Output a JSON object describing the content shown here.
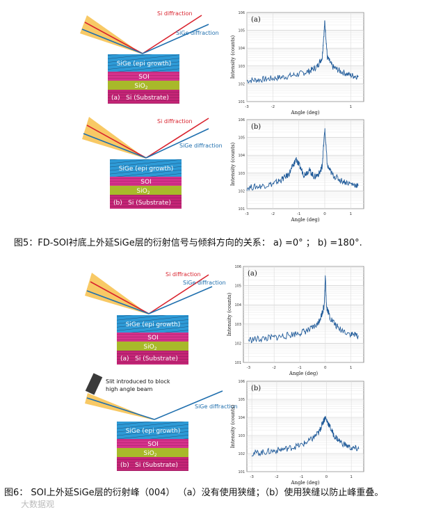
{
  "fig5": {
    "caption": "图5：FD-SOI衬底上外延SiGe层的衍射信号与倾斜方向的关系： a)    =0° ；  b)    =180°.",
    "a": {
      "si_diffraction": "Si diffraction",
      "sige_diffraction": "SiGe diffraction",
      "layer_sige": "SiGe (epi growth)",
      "layer_soi": "SOI",
      "layer_sio2_main": "SiO",
      "layer_sio2_sub": "2",
      "layer_si": "Si (Substrate)",
      "panel_tag": "(a)"
    },
    "b": {
      "si_diffraction": "Si diffraction",
      "sige_diffraction": "SiGe diffraction",
      "layer_sige": "SiGe (epi growth)",
      "layer_soi": "SOI",
      "layer_sio2_main": "SiO",
      "layer_sio2_sub": "2",
      "layer_si": "Si (Substrate)",
      "panel_tag": "(b)"
    }
  },
  "fig6": {
    "caption": "图6： SOI上外延SiGe层的衍射峰（004） （a）没有使用狭缝；（b）使用狭缝以防止峰重叠。",
    "a": {
      "si_diffraction": "Si diffraction",
      "sige_diffraction": "SiGe diffraction",
      "layer_sige": "SiGe (epi growth)",
      "layer_soi": "SOI",
      "layer_sio2_main": "SiO",
      "layer_sio2_sub": "2",
      "layer_si": "Si (Substrate)",
      "panel_tag": "(a)"
    },
    "b": {
      "slit_label_line1": "Slit introduced to block",
      "slit_label_line2": "high angle beam",
      "sige_diffraction": "SiGe diffraction",
      "layer_sige": "SiGe (epi growth)",
      "layer_soi": "SOI",
      "layer_sio2_main": "SiO",
      "layer_sio2_sub": "2",
      "layer_si": "Si (Substrate)",
      "panel_tag": "(b)"
    }
  },
  "watermark": "大数据观",
  "chart_data": [
    {
      "type": "line",
      "panel": "(a)",
      "xlabel": "Angle (deg)",
      "ylabel": "Intensity (counts)",
      "xlim": [
        -3,
        1.5
      ],
      "x_ticks": [
        -3,
        -2,
        1
      ],
      "y_ticks": [
        "10^1",
        "10^2",
        "10^3",
        "10^4",
        "10^5",
        "10^6"
      ],
      "log_y": true,
      "grid": true,
      "series": [
        {
          "x": [
            -3,
            -2.5,
            -2,
            -1.5,
            -1,
            -0.6,
            -0.3,
            -0.1,
            0,
            0.1,
            0.3,
            0.6,
            1,
            1.3
          ],
          "y": [
            150,
            170,
            200,
            250,
            350,
            500,
            900,
            3000,
            300000,
            3000,
            900,
            500,
            300,
            250
          ]
        }
      ]
    },
    {
      "type": "line",
      "panel": "(b)",
      "xlabel": "Angle (deg)",
      "ylabel": "Intensity (counts)",
      "xlim": [
        -3,
        1.5
      ],
      "x_ticks": [
        -3,
        -2,
        -1,
        0,
        1
      ],
      "y_ticks": [
        "10^1",
        "10^2",
        "10^3",
        "10^4",
        "10^5",
        "10^6"
      ],
      "log_y": true,
      "grid": true,
      "series": [
        {
          "x": [
            -3,
            -2.5,
            -2,
            -1.7,
            -1.4,
            -1.2,
            -1.1,
            -1,
            -0.8,
            -0.6,
            -0.4,
            -0.2,
            -0.1,
            0,
            0.1,
            0.3,
            0.6,
            1,
            1.3
          ],
          "y": [
            150,
            180,
            250,
            400,
            800,
            3000,
            6000,
            3000,
            800,
            1500,
            600,
            1000,
            2500,
            300000,
            2500,
            800,
            400,
            250,
            200
          ]
        }
      ]
    },
    {
      "type": "line",
      "panel": "(a)",
      "xlabel": "Angle (deg)",
      "ylabel": "Intensity (counts)",
      "xlim": [
        -3.2,
        1.5
      ],
      "x_ticks": [
        -3,
        -2,
        -1,
        0,
        1
      ],
      "y_ticks": [
        "10^1",
        "10^2",
        "10^3",
        "10^4",
        "10^5",
        "10^6"
      ],
      "log_y": true,
      "grid": true,
      "series": [
        {
          "x": [
            -3,
            -2.5,
            -2,
            -1.5,
            -1,
            -0.6,
            -0.3,
            -0.15,
            -0.05,
            0,
            0.05,
            0.2,
            0.5,
            1,
            1.3
          ],
          "y": [
            150,
            170,
            200,
            250,
            350,
            500,
            1000,
            3000,
            8000,
            300000,
            8000,
            2000,
            600,
            300,
            250
          ]
        }
      ]
    },
    {
      "type": "line",
      "panel": "(b)",
      "xlabel": "Angle (deg)",
      "ylabel": "Intensity (counts)",
      "xlim": [
        -3.2,
        1.5
      ],
      "x_ticks": [
        -3,
        -2,
        -1,
        0,
        1
      ],
      "y_ticks": [
        "10^1",
        "10^2",
        "10^3",
        "10^4",
        "10^5",
        "10^6"
      ],
      "log_y": true,
      "grid": true,
      "series": [
        {
          "x": [
            -3,
            -2.5,
            -2,
            -1.5,
            -1,
            -0.6,
            -0.3,
            -0.15,
            -0.05,
            0.1,
            0.3,
            0.6,
            1,
            1.3
          ],
          "y": [
            100,
            120,
            150,
            200,
            300,
            600,
            1500,
            5000,
            10000,
            4000,
            1000,
            400,
            200,
            180
          ]
        }
      ]
    }
  ]
}
